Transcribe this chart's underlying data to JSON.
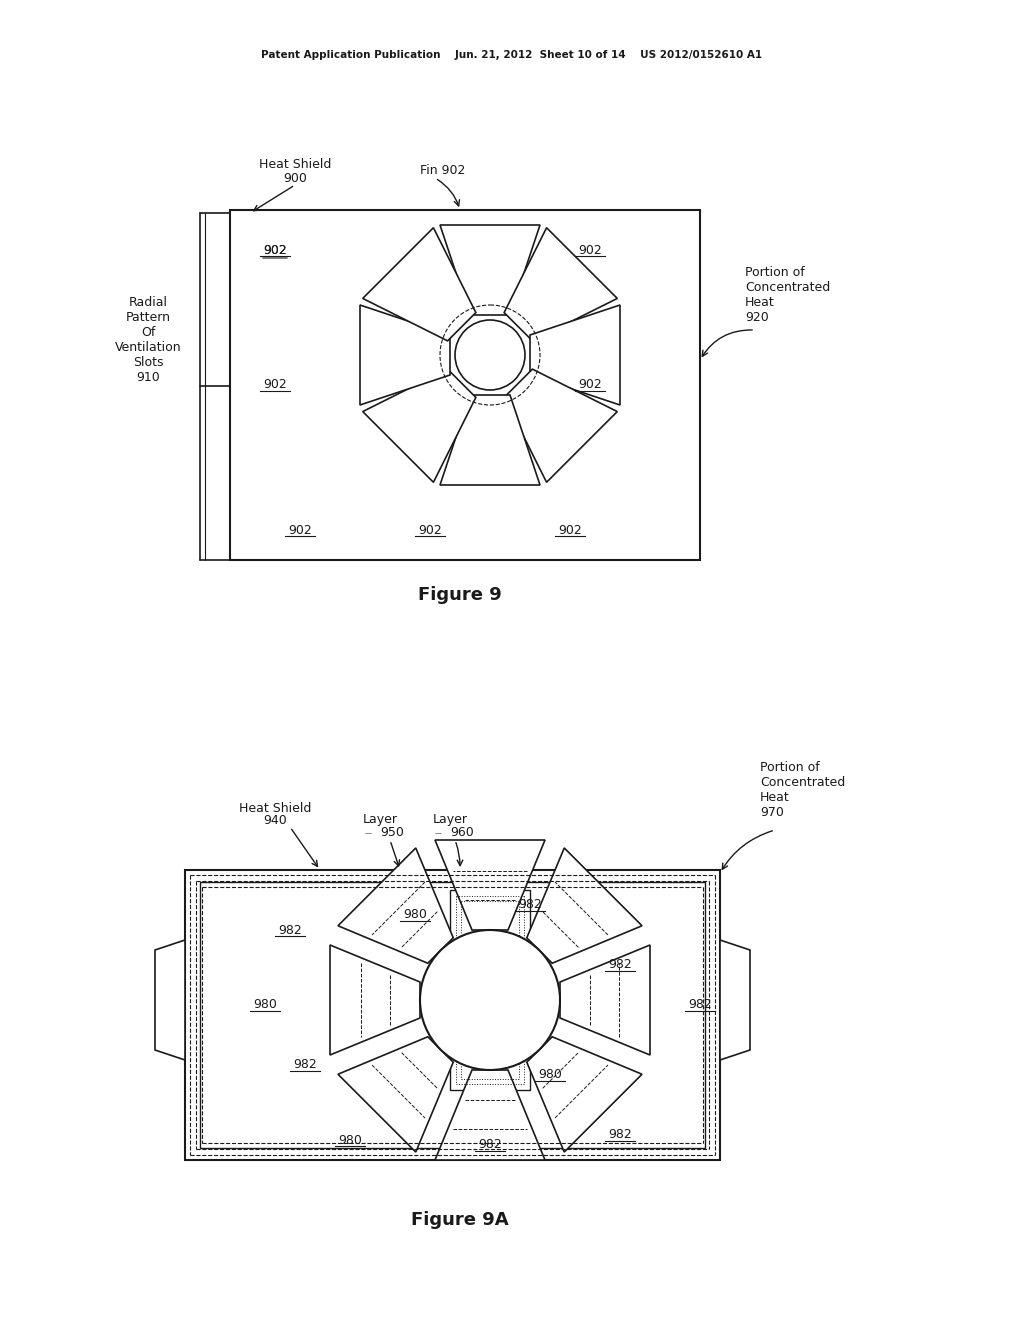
{
  "bg_color": "#ffffff",
  "header_text": "Patent Application Publication    Jun. 21, 2012  Sheet 10 of 14    US 2012/0152610 A1",
  "fig9_title": "Figure 9",
  "fig9a_title": "Figure 9A",
  "line_color": "#1a1a1a",
  "text_color": "#1a1a1a"
}
